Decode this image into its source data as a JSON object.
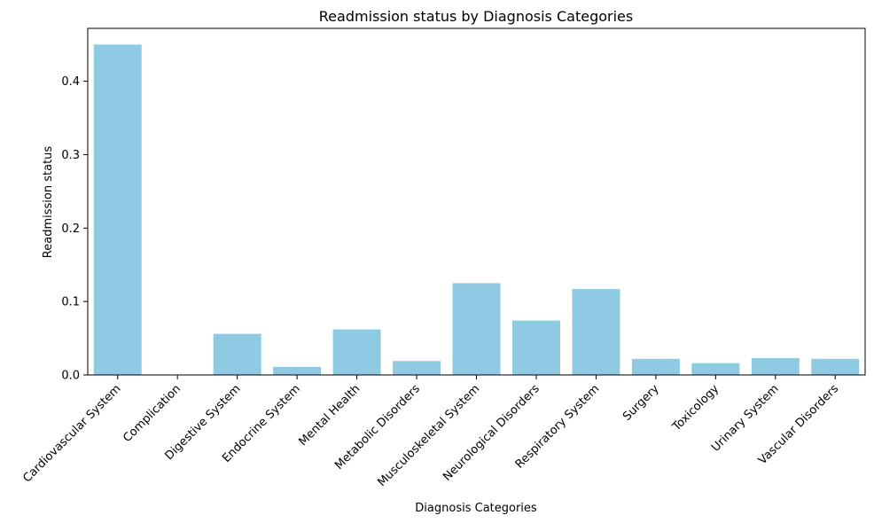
{
  "chart_data": {
    "type": "bar",
    "title": "Readmission status by Diagnosis Categories",
    "xlabel": "Diagnosis Categories",
    "ylabel": "Readmission status",
    "ylim": [
      0,
      0.472
    ],
    "yticks": [
      "0.0",
      "0.1",
      "0.2",
      "0.3",
      "0.4"
    ],
    "bar_color": "#8ECAE2",
    "grid": false,
    "categories": [
      "Cardiovascular System",
      "Complication",
      "Digestive System",
      "Endocrine System",
      "Mental Health",
      "Metabolic Disorders",
      "Musculoskeletal System",
      "Neurological Disorders",
      "Respiratory System",
      "Surgery",
      "Toxicology",
      "Urinary System",
      "Vascular Disorders"
    ],
    "values": [
      0.45,
      0.0,
      0.056,
      0.011,
      0.062,
      0.019,
      0.125,
      0.074,
      0.117,
      0.022,
      0.016,
      0.023,
      0.022
    ]
  }
}
